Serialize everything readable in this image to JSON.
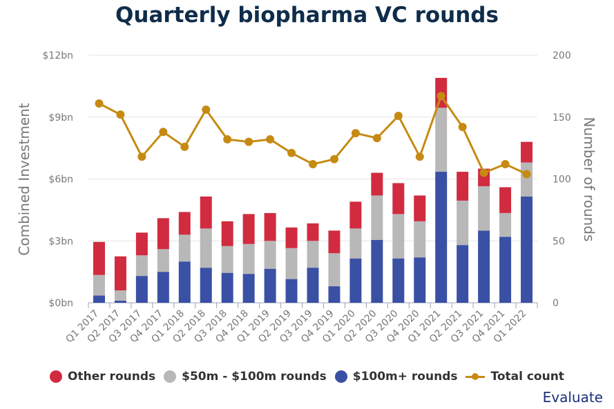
{
  "chart_data": {
    "type": "bar",
    "title": "Quarterly biopharma VC rounds",
    "ylabel": "Combined Investment",
    "y2label": "Number of rounds",
    "ylim": [
      0,
      12
    ],
    "y2lim": [
      0,
      200
    ],
    "yticks": [
      "$0bn",
      "$3bn",
      "$6bn",
      "$9bn",
      "$12bn"
    ],
    "y2ticks": [
      "0",
      "50",
      "100",
      "150",
      "200"
    ],
    "categories": [
      "Q1 2017",
      "Q2 2017",
      "Q3 2017",
      "Q4 2017",
      "Q1 2018",
      "Q2 2018",
      "Q3 2018",
      "Q4 2018",
      "Q1 2019",
      "Q2 2019",
      "Q3 2019",
      "Q4 2019",
      "Q1 2020",
      "Q2 2020",
      "Q3 2020",
      "Q4 2020",
      "Q1 2021",
      "Q2 2021",
      "Q3 2021",
      "Q4 2021",
      "Q1 2022"
    ],
    "stacked_series": [
      {
        "name": "$100m+ rounds",
        "color": "#3a50a4",
        "values": [
          0.35,
          0.1,
          1.3,
          1.5,
          2.0,
          1.7,
          1.45,
          1.4,
          1.65,
          1.15,
          1.7,
          0.8,
          2.15,
          3.05,
          2.15,
          2.2,
          6.35,
          2.8,
          3.5,
          3.2,
          5.15
        ]
      },
      {
        "name": "$50m - $100m rounds",
        "color": "#b8b8b8",
        "values": [
          1.0,
          0.5,
          1.0,
          1.1,
          1.3,
          1.9,
          1.3,
          1.45,
          1.35,
          1.5,
          1.3,
          1.6,
          1.45,
          2.15,
          2.15,
          1.75,
          3.1,
          2.15,
          2.15,
          1.15,
          1.65
        ]
      },
      {
        "name": "Other rounds",
        "color": "#d12b3f",
        "values": [
          1.6,
          1.65,
          1.1,
          1.5,
          1.1,
          1.55,
          1.2,
          1.45,
          1.35,
          1.0,
          0.85,
          1.1,
          1.3,
          1.1,
          1.5,
          1.25,
          1.45,
          1.4,
          0.85,
          1.25,
          1.0
        ]
      }
    ],
    "line_series": {
      "name": "Total count",
      "color": "#c68a13",
      "axis": "right",
      "values": [
        161,
        152,
        118,
        138,
        126,
        156,
        132,
        130,
        132,
        121,
        112,
        116,
        137,
        133,
        151,
        118,
        167,
        142,
        105,
        112,
        104
      ]
    },
    "legend_position": "bottom"
  },
  "brand": "Evaluate"
}
